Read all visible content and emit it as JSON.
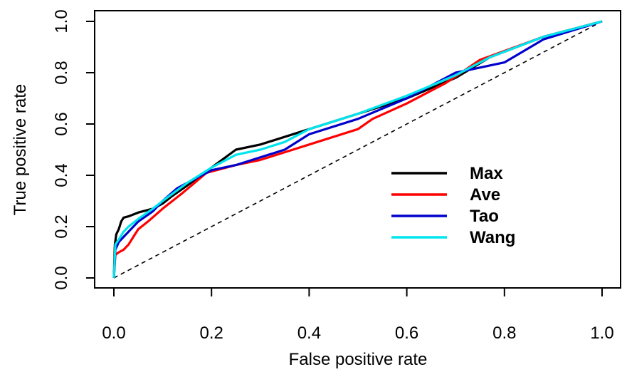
{
  "chart_data": {
    "type": "line",
    "xlabel": "False positive rate",
    "ylabel": "True positive rate",
    "xlim": [
      0,
      1
    ],
    "ylim": [
      0,
      1
    ],
    "xticks": [
      "0.0",
      "0.2",
      "0.4",
      "0.6",
      "0.8",
      "1.0"
    ],
    "yticks": [
      "0.0",
      "0.2",
      "0.4",
      "0.6",
      "0.8",
      "1.0"
    ],
    "grid": false,
    "legend": "right",
    "reference_line": {
      "style": "dashed",
      "from": [
        0,
        0
      ],
      "to": [
        1,
        1
      ]
    },
    "series": [
      {
        "name": "Max",
        "color": "#000000",
        "x": [
          0,
          0.002,
          0.005,
          0.01,
          0.015,
          0.02,
          0.03,
          0.05,
          0.08,
          0.1,
          0.12,
          0.15,
          0.2,
          0.25,
          0.3,
          0.4,
          0.5,
          0.6,
          0.7,
          0.77,
          0.88,
          1.0
        ],
        "y": [
          0,
          0.13,
          0.17,
          0.19,
          0.22,
          0.235,
          0.24,
          0.255,
          0.27,
          0.29,
          0.32,
          0.36,
          0.43,
          0.5,
          0.52,
          0.58,
          0.64,
          0.7,
          0.78,
          0.86,
          0.94,
          1.0
        ]
      },
      {
        "name": "Ave",
        "color": "#ff0000",
        "x": [
          0,
          0.003,
          0.01,
          0.02,
          0.03,
          0.04,
          0.05,
          0.07,
          0.1,
          0.14,
          0.19,
          0.25,
          0.3,
          0.35,
          0.4,
          0.5,
          0.53,
          0.6,
          0.68,
          0.75,
          0.88,
          1.0
        ],
        "y": [
          0,
          0.09,
          0.1,
          0.11,
          0.13,
          0.16,
          0.19,
          0.22,
          0.27,
          0.33,
          0.41,
          0.44,
          0.46,
          0.49,
          0.52,
          0.58,
          0.62,
          0.68,
          0.76,
          0.85,
          0.94,
          1.0
        ]
      },
      {
        "name": "Tao",
        "color": "#0000cc",
        "x": [
          0,
          0.003,
          0.01,
          0.02,
          0.03,
          0.05,
          0.08,
          0.1,
          0.13,
          0.18,
          0.2,
          0.25,
          0.3,
          0.35,
          0.4,
          0.5,
          0.6,
          0.7,
          0.75,
          0.8,
          0.88,
          1.0
        ],
        "y": [
          0,
          0.11,
          0.14,
          0.16,
          0.18,
          0.22,
          0.26,
          0.3,
          0.35,
          0.4,
          0.42,
          0.44,
          0.47,
          0.5,
          0.56,
          0.62,
          0.7,
          0.8,
          0.82,
          0.84,
          0.93,
          1.0
        ]
      },
      {
        "name": "Wang",
        "color": "#00e5ee",
        "x": [
          0,
          0.003,
          0.01,
          0.02,
          0.03,
          0.05,
          0.08,
          0.1,
          0.15,
          0.2,
          0.25,
          0.3,
          0.35,
          0.4,
          0.5,
          0.6,
          0.7,
          0.77,
          0.88,
          1.0
        ],
        "y": [
          0,
          0.13,
          0.15,
          0.18,
          0.2,
          0.23,
          0.27,
          0.3,
          0.37,
          0.43,
          0.48,
          0.5,
          0.53,
          0.58,
          0.64,
          0.71,
          0.79,
          0.86,
          0.94,
          1.0
        ]
      }
    ]
  }
}
